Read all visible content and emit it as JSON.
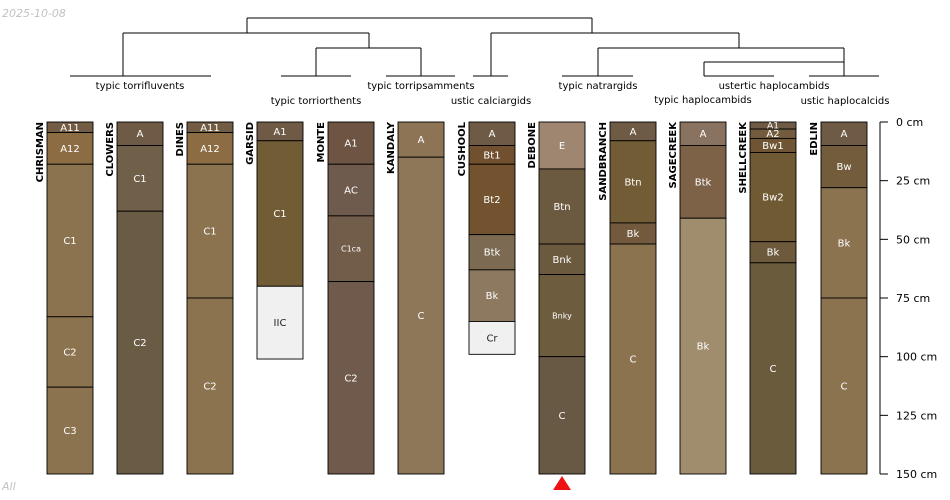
{
  "date_text": "2025-10-08",
  "footer_text": "All",
  "chart_data": {
    "type": "soil-profile-sketch",
    "depth_unit": "cm",
    "depth_range": [
      0,
      150
    ],
    "depth_ticks": [
      {
        "value": 0,
        "label": "0 cm"
      },
      {
        "value": 25,
        "label": "25 cm"
      },
      {
        "value": 50,
        "label": "50 cm"
      },
      {
        "value": 75,
        "label": "75 cm"
      },
      {
        "value": 100,
        "label": "100 cm"
      },
      {
        "value": 125,
        "label": "125 cm"
      },
      {
        "value": 150,
        "label": "150 cm"
      }
    ],
    "taxa": [
      {
        "label": "typic torrifluvents"
      },
      {
        "label": "typic torriorthents"
      },
      {
        "label": "typic torripsamments"
      },
      {
        "label": "ustic calciargids"
      },
      {
        "label": "typic natrargids"
      },
      {
        "label": "ustertic haplocambids"
      },
      {
        "label": "typic haplocambids"
      },
      {
        "label": "ustic haplocalcids"
      }
    ],
    "marker": {
      "profile": "DEBONE",
      "shape": "triangle",
      "color": "#ee1111"
    },
    "profiles": [
      {
        "name": "CHRISMAN",
        "horizons": [
          {
            "name": "A11",
            "top": 0,
            "bottom": 4.5,
            "color": "#725c43"
          },
          {
            "name": "A12",
            "top": 4.5,
            "bottom": 18,
            "color": "#8c6d43"
          },
          {
            "name": "C1",
            "top": 18,
            "bottom": 83,
            "color": "#8b7350"
          },
          {
            "name": "C2",
            "top": 83,
            "bottom": 113,
            "color": "#8b7350"
          },
          {
            "name": "C3",
            "top": 113,
            "bottom": 150,
            "color": "#8b7350"
          }
        ]
      },
      {
        "name": "CLOWERS",
        "horizons": [
          {
            "name": "A",
            "top": 0,
            "bottom": 10,
            "color": "#6e5a45"
          },
          {
            "name": "C1",
            "top": 10,
            "bottom": 38,
            "color": "#706049"
          },
          {
            "name": "C2",
            "top": 38,
            "bottom": 150,
            "color": "#6a5b45"
          }
        ]
      },
      {
        "name": "DINES",
        "horizons": [
          {
            "name": "A11",
            "top": 0,
            "bottom": 4.5,
            "color": "#725c43"
          },
          {
            "name": "A12",
            "top": 4.5,
            "bottom": 18,
            "color": "#8c6d43"
          },
          {
            "name": "C1",
            "top": 18,
            "bottom": 75,
            "color": "#8b7350"
          },
          {
            "name": "C2",
            "top": 75,
            "bottom": 150,
            "color": "#8b7350"
          }
        ]
      },
      {
        "name": "GARSID",
        "horizons": [
          {
            "name": "A1",
            "top": 0,
            "bottom": 8,
            "color": "#6e5a45"
          },
          {
            "name": "C1",
            "top": 8,
            "bottom": 70,
            "color": "#725c35"
          },
          {
            "name": "IIC",
            "top": 70,
            "bottom": 101,
            "color": "#f0f0f0"
          }
        ]
      },
      {
        "name": "MONTE",
        "horizons": [
          {
            "name": "A1",
            "top": 0,
            "bottom": 18,
            "color": "#6d5443"
          },
          {
            "name": "AC",
            "top": 18,
            "bottom": 40,
            "color": "#6f5b4d"
          },
          {
            "name": "C1ca",
            "top": 40,
            "bottom": 68,
            "color": "#725c4a"
          },
          {
            "name": "C2",
            "top": 68,
            "bottom": 150,
            "color": "#6f5a4c"
          }
        ]
      },
      {
        "name": "KANDALY",
        "horizons": [
          {
            "name": "A",
            "top": 0,
            "bottom": 15,
            "color": "#8c7455"
          },
          {
            "name": "C",
            "top": 15,
            "bottom": 150,
            "color": "#8e7659"
          }
        ]
      },
      {
        "name": "CUSHOOL",
        "horizons": [
          {
            "name": "A",
            "top": 0,
            "bottom": 10,
            "color": "#6e5a45"
          },
          {
            "name": "Bt1",
            "top": 10,
            "bottom": 18,
            "color": "#71502f"
          },
          {
            "name": "Bt2",
            "top": 18,
            "bottom": 48,
            "color": "#73532f"
          },
          {
            "name": "Btk",
            "top": 48,
            "bottom": 63,
            "color": "#7c6a52"
          },
          {
            "name": "Bk",
            "top": 63,
            "bottom": 85,
            "color": "#8d7860"
          },
          {
            "name": "Cr",
            "top": 85,
            "bottom": 99,
            "color": "#f0f0f0"
          }
        ]
      },
      {
        "name": "DEBONE",
        "horizons": [
          {
            "name": "E",
            "top": 0,
            "bottom": 20,
            "color": "#9e8670"
          },
          {
            "name": "Btn",
            "top": 20,
            "bottom": 52,
            "color": "#6c5a40"
          },
          {
            "name": "Bnk",
            "top": 52,
            "bottom": 65,
            "color": "#6b5a3e"
          },
          {
            "name": "Bnky",
            "top": 65,
            "bottom": 100,
            "color": "#6e5c3f"
          },
          {
            "name": "C",
            "top": 100,
            "bottom": 150,
            "color": "#685945"
          }
        ]
      },
      {
        "name": "SANDBRANCH",
        "horizons": [
          {
            "name": "A",
            "top": 0,
            "bottom": 8,
            "color": "#6e5a45"
          },
          {
            "name": "Btn",
            "top": 8,
            "bottom": 43,
            "color": "#725c35"
          },
          {
            "name": "Bk",
            "top": 43,
            "bottom": 52,
            "color": "#73593d"
          },
          {
            "name": "C",
            "top": 52,
            "bottom": 150,
            "color": "#8c7350"
          }
        ]
      },
      {
        "name": "SAGECREEK",
        "horizons": [
          {
            "name": "A",
            "top": 0,
            "bottom": 10,
            "color": "#897360"
          },
          {
            "name": "Btk",
            "top": 10,
            "bottom": 41,
            "color": "#7d6248"
          },
          {
            "name": "Bk",
            "top": 41,
            "bottom": 150,
            "color": "#a08d6d"
          }
        ]
      },
      {
        "name": "SHELLCREEK",
        "horizons": [
          {
            "name": "A1",
            "top": 0,
            "bottom": 3,
            "color": "#6e5a45"
          },
          {
            "name": "A2",
            "top": 3,
            "bottom": 7,
            "color": "#735c3d"
          },
          {
            "name": "Bw1",
            "top": 7,
            "bottom": 13,
            "color": "#6f5533"
          },
          {
            "name": "Bw2",
            "top": 13,
            "bottom": 51,
            "color": "#6f5a33"
          },
          {
            "name": "Bk",
            "top": 51,
            "bottom": 60,
            "color": "#6d5a3c"
          },
          {
            "name": "C",
            "top": 60,
            "bottom": 150,
            "color": "#6b5b3d"
          }
        ]
      },
      {
        "name": "EDLIN",
        "horizons": [
          {
            "name": "A",
            "top": 0,
            "bottom": 10,
            "color": "#6e5a45"
          },
          {
            "name": "Bw",
            "top": 10,
            "bottom": 28,
            "color": "#735c3c"
          },
          {
            "name": "Bk",
            "top": 28,
            "bottom": 75,
            "color": "#8c7350"
          },
          {
            "name": "C",
            "top": 75,
            "bottom": 150,
            "color": "#8c7350"
          }
        ]
      }
    ]
  }
}
